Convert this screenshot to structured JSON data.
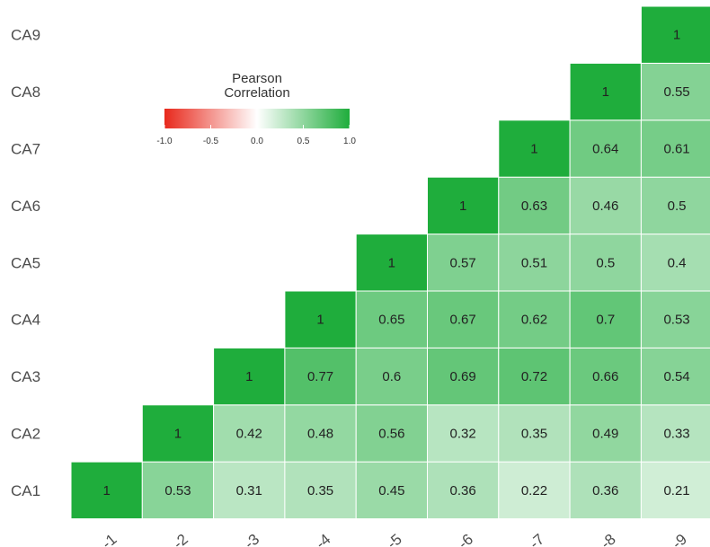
{
  "chart_data": {
    "type": "heatmap",
    "row_labels": [
      "CA1",
      "CA2",
      "CA3",
      "CA4",
      "CA5",
      "CA6",
      "CA7",
      "CA8",
      "CA9"
    ],
    "col_tick_labels": [
      "-1",
      "-2",
      "-3",
      "-4",
      "-5",
      "-6",
      "-7",
      "-8",
      "-9"
    ],
    "values": [
      [
        1,
        0.53,
        0.31,
        0.35,
        0.45,
        0.36,
        0.22,
        0.36,
        0.21
      ],
      [
        null,
        1,
        0.42,
        0.48,
        0.56,
        0.32,
        0.35,
        0.49,
        0.33
      ],
      [
        null,
        null,
        1,
        0.77,
        0.6,
        0.69,
        0.72,
        0.66,
        0.54
      ],
      [
        null,
        null,
        null,
        1,
        0.65,
        0.67,
        0.62,
        0.7,
        0.53
      ],
      [
        null,
        null,
        null,
        null,
        1,
        0.57,
        0.51,
        0.5,
        0.4
      ],
      [
        null,
        null,
        null,
        null,
        null,
        1,
        0.63,
        0.46,
        0.5
      ],
      [
        null,
        null,
        null,
        null,
        null,
        null,
        1,
        0.64,
        0.61
      ],
      [
        null,
        null,
        null,
        null,
        null,
        null,
        null,
        1,
        0.55
      ],
      [
        null,
        null,
        null,
        null,
        null,
        null,
        null,
        null,
        1
      ]
    ],
    "legend": {
      "title_line1": "Pearson",
      "title_line2": "Correlation",
      "ticks": [
        "-1.0",
        "-0.5",
        "0.0",
        "0.5",
        "1.0"
      ],
      "range": [
        -1,
        1
      ],
      "placement": "top-left"
    },
    "colors": {
      "low": "#e8291c",
      "mid": "#ffffff",
      "high": "#1fad3c"
    }
  }
}
